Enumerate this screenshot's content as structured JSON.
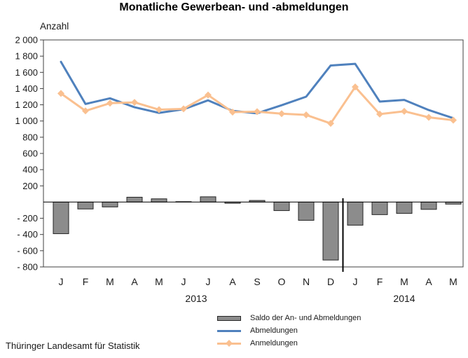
{
  "title": "Monatliche Gewerbean- und -abmeldungen",
  "y_axis_label": "Anzahl",
  "footer": "Thüringer Landesamt für Statistik",
  "chart_data": {
    "type": "combo (bar + line)",
    "categories": [
      "J",
      "F",
      "M",
      "A",
      "M",
      "J",
      "J",
      "A",
      "S",
      "O",
      "N",
      "D",
      "J",
      "F",
      "M",
      "A",
      "M"
    ],
    "year_labels": [
      {
        "label": "2013",
        "covers_month_indices": [
          0,
          11
        ]
      },
      {
        "label": "2014",
        "covers_month_indices": [
          12,
          16
        ]
      }
    ],
    "series": [
      {
        "name": "Saldo der An- und Abmeldungen",
        "type": "bar",
        "color": "#8c8c8c",
        "values": [
          -390,
          -85,
          -60,
          60,
          40,
          5,
          65,
          -15,
          20,
          -105,
          -225,
          -715,
          -285,
          -155,
          -140,
          -90,
          -25
        ]
      },
      {
        "name": "Abmeldungen",
        "type": "line",
        "color": "#4f81bd",
        "values": [
          1730,
          1210,
          1280,
          1170,
          1100,
          1145,
          1255,
          1125,
          1095,
          1195,
          1300,
          1685,
          1705,
          1240,
          1260,
          1135,
          1035
        ]
      },
      {
        "name": "Anmeldungen",
        "type": "line",
        "marker": "diamond",
        "color": "#fac090",
        "values": [
          1340,
          1125,
          1220,
          1230,
          1140,
          1150,
          1320,
          1110,
          1115,
          1090,
          1075,
          970,
          1420,
          1085,
          1120,
          1045,
          1010
        ]
      }
    ],
    "ylim": [
      -800,
      2000
    ],
    "y_ticks": [
      {
        "value": 2000,
        "label": "2 000"
      },
      {
        "value": 1800,
        "label": "1 800"
      },
      {
        "value": 1600,
        "label": "1 600"
      },
      {
        "value": 1400,
        "label": "1 400"
      },
      {
        "value": 1200,
        "label": "1 200"
      },
      {
        "value": 1000,
        "label": "1 000"
      },
      {
        "value": 800,
        "label": "800"
      },
      {
        "value": 600,
        "label": "600"
      },
      {
        "value": 400,
        "label": "400"
      },
      {
        "value": 200,
        "label": "200"
      },
      {
        "value": -200,
        "label": "- 200"
      },
      {
        "value": -400,
        "label": "- 400"
      },
      {
        "value": -600,
        "label": "- 600"
      },
      {
        "value": -800,
        "label": "- 800"
      }
    ],
    "grid": false,
    "zero_line": true,
    "year_divider_between_indices": [
      11,
      12
    ],
    "legend_position": "bottom-center"
  }
}
